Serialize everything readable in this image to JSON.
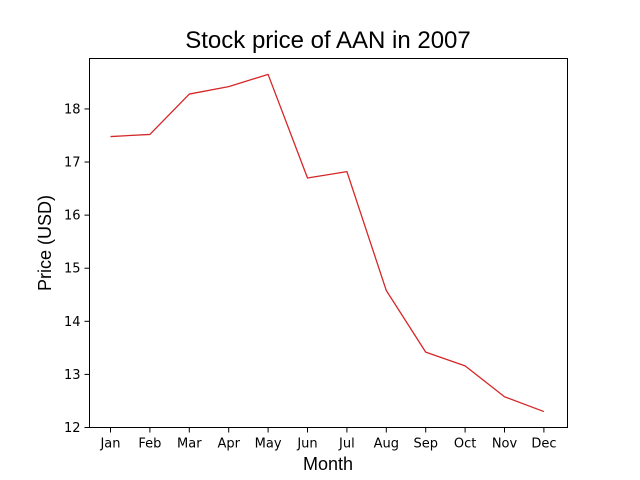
{
  "chart_data": {
    "type": "line",
    "title": "Stock price of AAN in 2007",
    "xlabel": "Month",
    "ylabel": "Price (USD)",
    "categories": [
      "Jan",
      "Feb",
      "Mar",
      "Apr",
      "May",
      "Jun",
      "Jul",
      "Aug",
      "Sep",
      "Oct",
      "Nov",
      "Dec"
    ],
    "series": [
      {
        "values": [
          17.48,
          17.52,
          18.28,
          18.42,
          18.65,
          16.7,
          16.82,
          14.58,
          13.42,
          13.16,
          12.58,
          12.3
        ],
        "color": "#d62728"
      }
    ],
    "ylim": [
      12,
      18.95
    ],
    "yticks": [
      12,
      13,
      14,
      15,
      16,
      17,
      18
    ],
    "grid": false,
    "legend": "none"
  }
}
